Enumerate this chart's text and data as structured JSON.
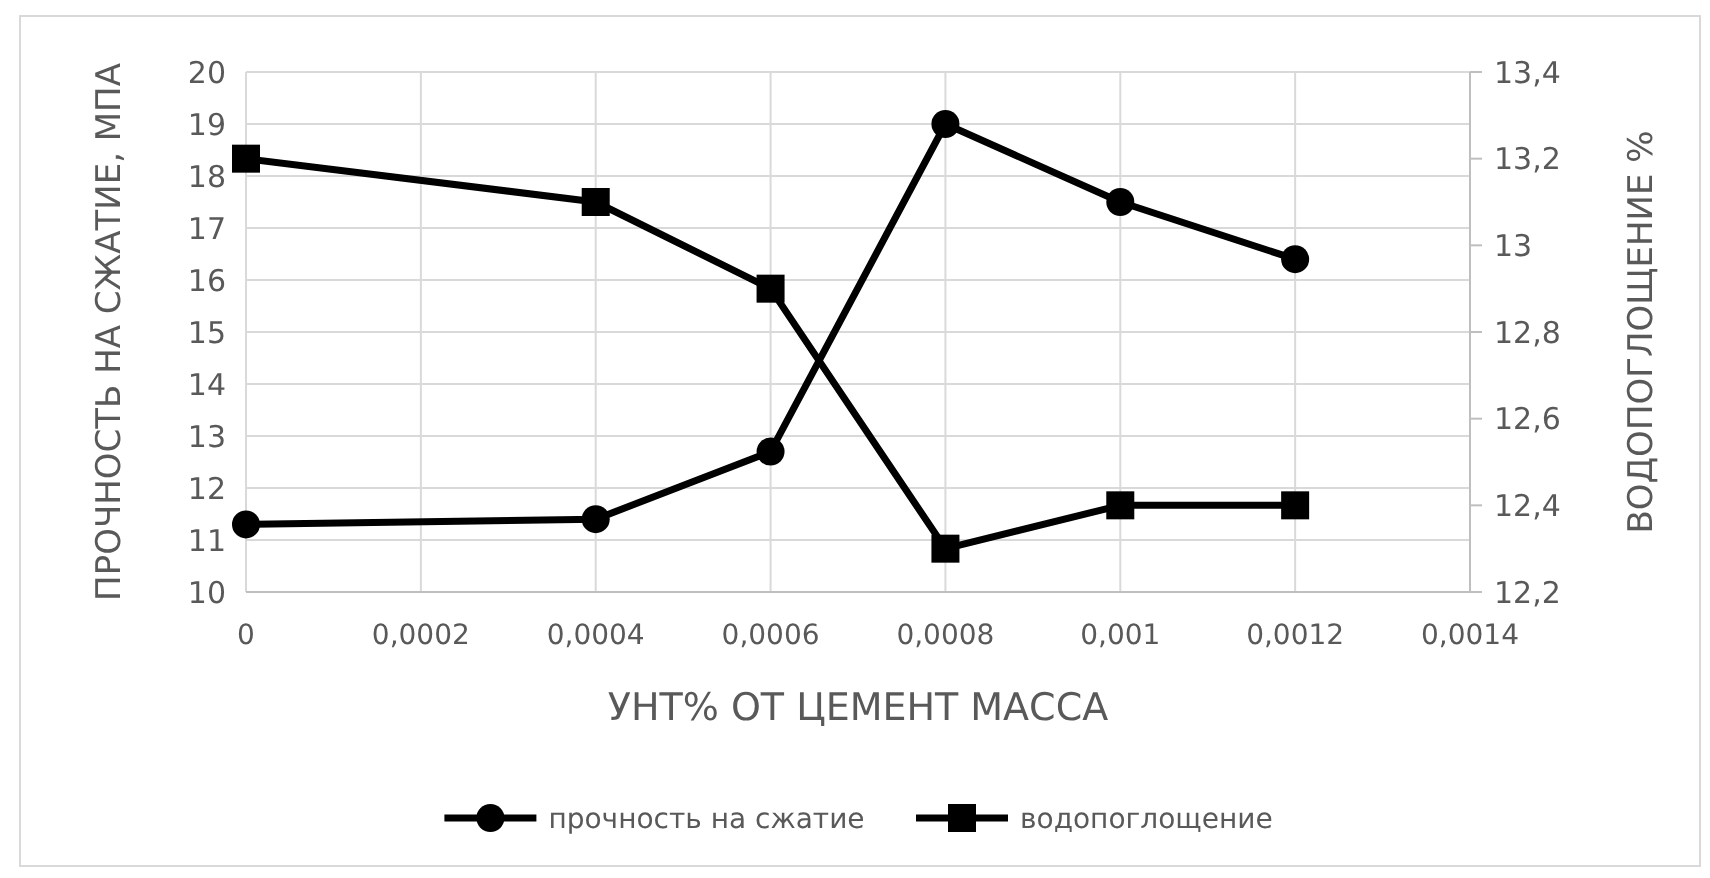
{
  "chart_data": {
    "type": "line",
    "xlabel": "УНТ% ОТ ЦЕМЕНТ МАССА",
    "ylabel": "ПРОЧНОСТЬ НА СЖАТИЕ, МПА",
    "y2label": "ВОДОПОГЛОЩЕНИЕ %",
    "x": [
      0,
      0.0004,
      0.0006,
      0.0008,
      0.001,
      0.0012
    ],
    "series": [
      {
        "name": "прочность на сжатие",
        "color": "#000000",
        "marker": "circle",
        "values": [
          11.3,
          11.4,
          12.7,
          19.0,
          17.5,
          16.4
        ]
      },
      {
        "name": "водопоглощение",
        "color": "#000000",
        "marker": "square",
        "axis": "y2",
        "values": [
          13.2,
          13.1,
          12.9,
          12.3,
          12.4,
          12.4
        ]
      }
    ],
    "xlim": [
      0,
      0.0014
    ],
    "xticks": [
      {
        "value": 0,
        "label": "0"
      },
      {
        "value": 0.0002,
        "label": "0,0002"
      },
      {
        "value": 0.0004,
        "label": "0,0004"
      },
      {
        "value": 0.0006,
        "label": "0,0006"
      },
      {
        "value": 0.0008,
        "label": "0,0008"
      },
      {
        "value": 0.001,
        "label": "0,001"
      },
      {
        "value": 0.0012,
        "label": "0,0012"
      },
      {
        "value": 0.0014,
        "label": "0,0014"
      }
    ],
    "ylim": [
      10,
      20
    ],
    "yticks": [
      10,
      11,
      12,
      13,
      14,
      15,
      16,
      17,
      18,
      19,
      20
    ],
    "y2lim": [
      12.2,
      13.4
    ],
    "y2ticks": [
      {
        "value": 12.2,
        "label": "12,2"
      },
      {
        "value": 12.4,
        "label": "12,4"
      },
      {
        "value": 12.6,
        "label": "12,6"
      },
      {
        "value": 12.8,
        "label": "12,8"
      },
      {
        "value": 13,
        "label": "13"
      },
      {
        "value": 13.2,
        "label": "13,2"
      },
      {
        "value": 13.4,
        "label": "13,4"
      }
    ],
    "grid": true,
    "legend": "bottom",
    "line_style": "solid"
  }
}
